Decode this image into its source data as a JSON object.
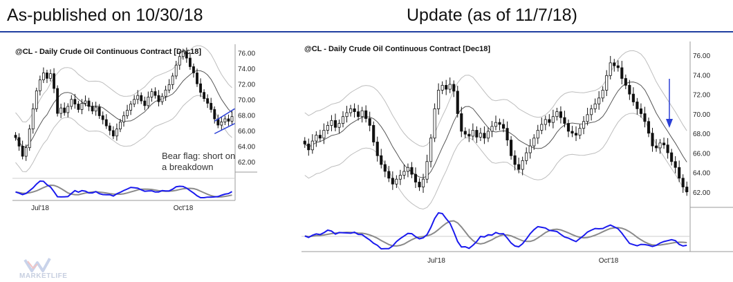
{
  "headings": {
    "left": "As-published on 10/30/18",
    "right": "Update (as of 11/7/18)"
  },
  "colors": {
    "accent": "#1f3ea0",
    "candle": "#111111",
    "band": "#bdbdbd",
    "ma": "#555555",
    "oscillator": "#1a1aee",
    "oscillator_signal": "#8a8a8a",
    "annotation_line": "#2a3fd6"
  },
  "annotation": {
    "line1": "Bear flag: short on",
    "line2": "a breakdown"
  },
  "logo": {
    "text": "MARKETLIFE"
  },
  "chart_data": [
    {
      "type": "candlestick",
      "title": "@CL - Daily  Crude Oil Continuous Contract [Dec18]",
      "y_ticks": [
        "76.00",
        "74.00",
        "72.00",
        "70.00",
        "68.00",
        "66.00",
        "64.00",
        "62.00"
      ],
      "x_ticks": [
        "Jul'18",
        "Oct'18"
      ],
      "ylim": [
        60.5,
        77.0
      ],
      "close": [
        65.2,
        64.1,
        62.8,
        63.9,
        66.3,
        68.9,
        71.2,
        72.6,
        73.5,
        72.8,
        73.4,
        71.5,
        68.3,
        69.0,
        68.4,
        69.2,
        70.1,
        69.5,
        68.8,
        69.6,
        69.9,
        69.2,
        68.6,
        69.1,
        68.0,
        67.5,
        66.7,
        66.1,
        65.4,
        66.3,
        67.2,
        68.0,
        68.7,
        69.5,
        70.1,
        70.6,
        69.9,
        69.3,
        70.4,
        71.1,
        70.6,
        69.8,
        70.5,
        71.3,
        72.0,
        73.1,
        74.5,
        75.6,
        76.2,
        75.4,
        74.3,
        73.5,
        72.1,
        71.0,
        70.2,
        69.6,
        68.8,
        67.6,
        66.8,
        67.2,
        67.6,
        67.3,
        67.9
      ]
    },
    {
      "type": "candlestick",
      "title": "@CL - Daily  Crude Oil Continuous Contract [Dec18]",
      "y_ticks": [
        "76.00",
        "74.00",
        "72.00",
        "70.00",
        "68.00",
        "66.00",
        "64.00",
        "62.00"
      ],
      "x_ticks": [
        "Jul'18",
        "Oct'18"
      ],
      "ylim": [
        60.8,
        77.2
      ],
      "close": [
        67.0,
        66.4,
        67.3,
        67.9,
        67.6,
        68.4,
        68.9,
        69.4,
        68.7,
        69.1,
        69.8,
        70.2,
        70.6,
        70.3,
        69.8,
        70.4,
        69.6,
        68.9,
        67.2,
        65.8,
        64.9,
        64.2,
        63.5,
        62.9,
        63.4,
        63.8,
        64.2,
        64.6,
        63.9,
        63.1,
        62.6,
        63.4,
        65.2,
        67.6,
        70.6,
        72.5,
        73.0,
        72.6,
        73.1,
        72.4,
        70.1,
        68.3,
        68.0,
        67.8,
        68.4,
        67.7,
        68.1,
        67.6,
        68.3,
        68.8,
        69.2,
        69.0,
        68.6,
        67.4,
        65.8,
        64.9,
        64.4,
        65.3,
        66.1,
        66.8,
        67.6,
        68.4,
        69.0,
        69.5,
        69.2,
        69.8,
        70.3,
        69.7,
        69.1,
        68.3,
        68.1,
        67.9,
        68.6,
        69.3,
        70.0,
        70.6,
        71.1,
        71.7,
        72.5,
        74.0,
        75.3,
        75.0,
        74.8,
        73.7,
        73.0,
        72.1,
        71.3,
        70.6,
        70.1,
        69.3,
        68.1,
        66.8,
        66.6,
        67.1,
        66.9,
        66.1,
        65.2,
        64.6,
        63.5,
        62.6,
        62.1
      ]
    }
  ]
}
